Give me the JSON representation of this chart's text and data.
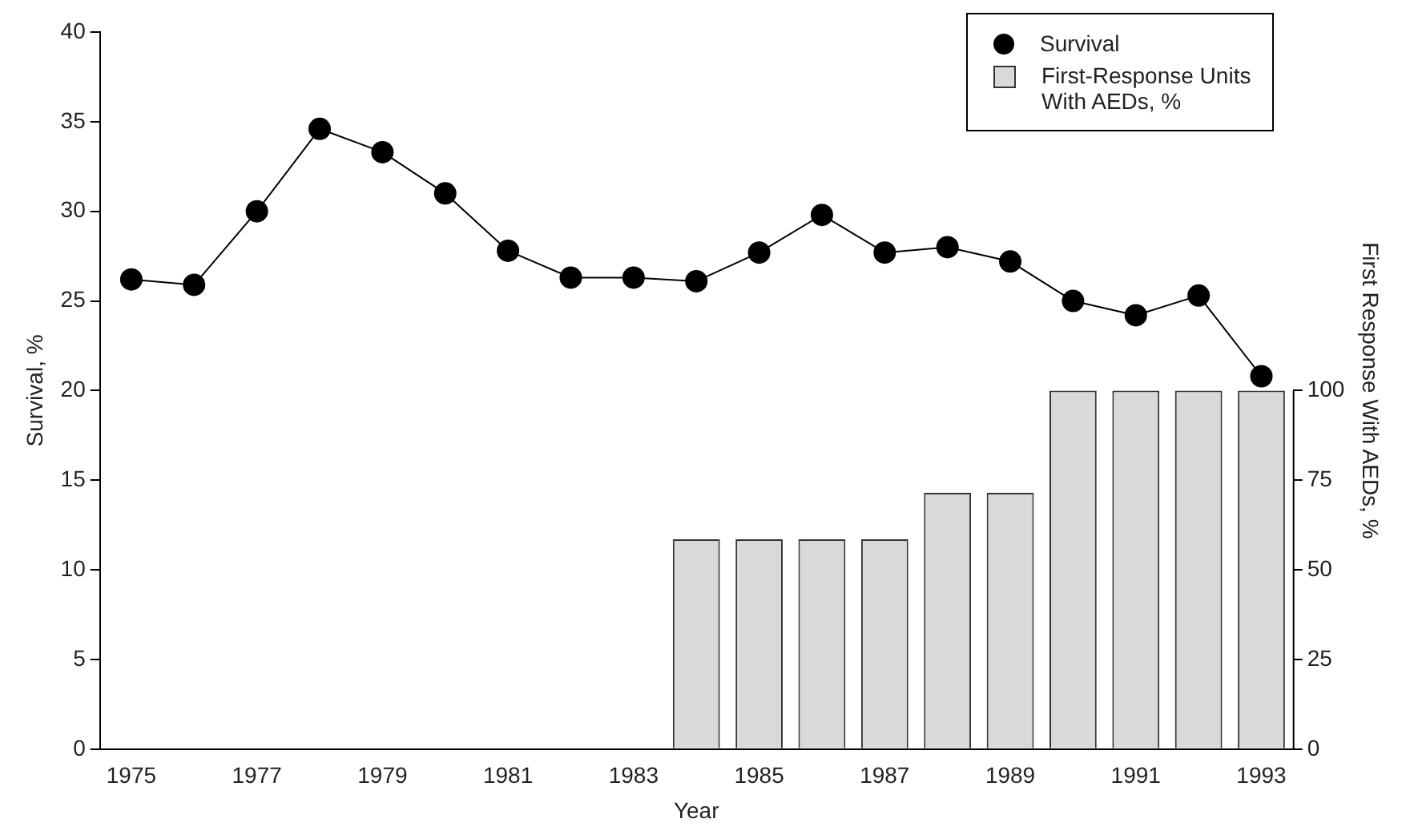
{
  "chart_data": {
    "type": "line",
    "xlabel": "Year",
    "ylabel": "Survival, %",
    "y2label": "First Response With AEDs, %",
    "categories": [
      "1975",
      null,
      "1977",
      null,
      "1979",
      null,
      "1981",
      null,
      "1983",
      null,
      "1985",
      null,
      "1987",
      null,
      "1989",
      null,
      "1991",
      null,
      "1993"
    ],
    "series": [
      {
        "name": "Survival",
        "color": "#000000",
        "values": [
          26.2,
          25.9,
          30.0,
          34.6,
          33.3,
          31.0,
          27.8,
          26.3,
          26.3,
          26.1,
          27.7,
          29.8,
          27.7,
          28.0,
          27.2,
          25.0,
          24.2,
          25.3,
          20.8
        ]
      },
      {
        "name": "First-Response Units With AEDs, %",
        "type": "bar",
        "axis": "y2",
        "color": "#d9d9d9",
        "values": [
          null,
          null,
          null,
          null,
          null,
          null,
          null,
          null,
          null,
          58.5,
          58.5,
          58.5,
          58.5,
          71.5,
          71.5,
          100,
          100,
          100,
          100
        ]
      }
    ],
    "ylim": [
      0,
      40
    ],
    "yticks": [
      0,
      5,
      10,
      15,
      20,
      25,
      30,
      35,
      40
    ],
    "y2lim": [
      0,
      200
    ],
    "y2ticks": [
      0,
      25,
      50,
      75,
      100
    ],
    "grid": false,
    "legend": "top right",
    "marker": "circle",
    "line_style": "solid"
  }
}
